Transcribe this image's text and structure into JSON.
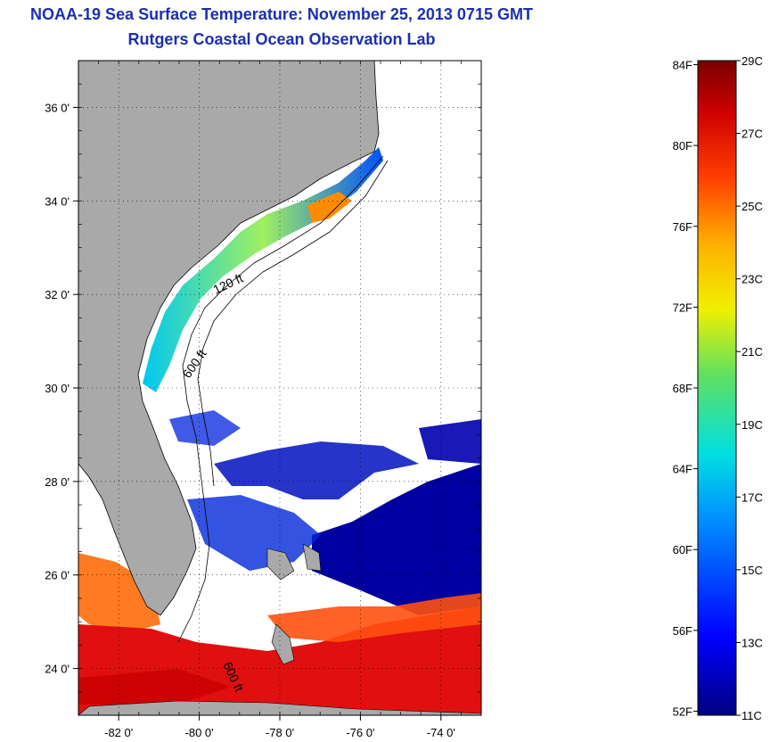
{
  "title": "NOAA-19 Sea Surface Temperature:  November 25, 2013 0715 GMT",
  "subtitle": "Rutgers Coastal Ocean Observation Lab",
  "map": {
    "lon_range": [
      -83,
      -73
    ],
    "lat_range": [
      23,
      37
    ],
    "lat_ticks": [
      {
        "value": 36,
        "label": "36 0'"
      },
      {
        "value": 34,
        "label": "34 0'"
      },
      {
        "value": 32,
        "label": "32 0'"
      },
      {
        "value": 30,
        "label": "30 0'"
      },
      {
        "value": 28,
        "label": "28 0'"
      },
      {
        "value": 26,
        "label": "26 0'"
      },
      {
        "value": 24,
        "label": "24 0'"
      }
    ],
    "lon_ticks": [
      {
        "value": -82,
        "label": "-82 0'"
      },
      {
        "value": -80,
        "label": "-80 0'"
      },
      {
        "value": -78,
        "label": "-78 0'"
      },
      {
        "value": -76,
        "label": "-76 0'"
      },
      {
        "value": -74,
        "label": "-74 0'"
      }
    ],
    "contour_labels": [
      "120 ft",
      "600 ft",
      "600 ft"
    ],
    "land_color": "#a9a9a9"
  },
  "colorbar": {
    "min_c": 11,
    "max_c": 29,
    "celsius_labels": [
      {
        "value": 29,
        "label": "29C"
      },
      {
        "value": 27,
        "label": "27C"
      },
      {
        "value": 25,
        "label": "25C"
      },
      {
        "value": 23,
        "label": "23C"
      },
      {
        "value": 21,
        "label": "21C"
      },
      {
        "value": 19,
        "label": "19C"
      },
      {
        "value": 17,
        "label": "17C"
      },
      {
        "value": 15,
        "label": "15C"
      },
      {
        "value": 13,
        "label": "13C"
      },
      {
        "value": 11,
        "label": "11C"
      }
    ],
    "fahrenheit_labels": [
      {
        "value": 84,
        "label": "84F"
      },
      {
        "value": 80,
        "label": "80F"
      },
      {
        "value": 76,
        "label": "76F"
      },
      {
        "value": 72,
        "label": "72F"
      },
      {
        "value": 68,
        "label": "68F"
      },
      {
        "value": 64,
        "label": "64F"
      },
      {
        "value": 60,
        "label": "60F"
      },
      {
        "value": 56,
        "label": "56F"
      },
      {
        "value": 52,
        "label": "52F"
      }
    ]
  }
}
